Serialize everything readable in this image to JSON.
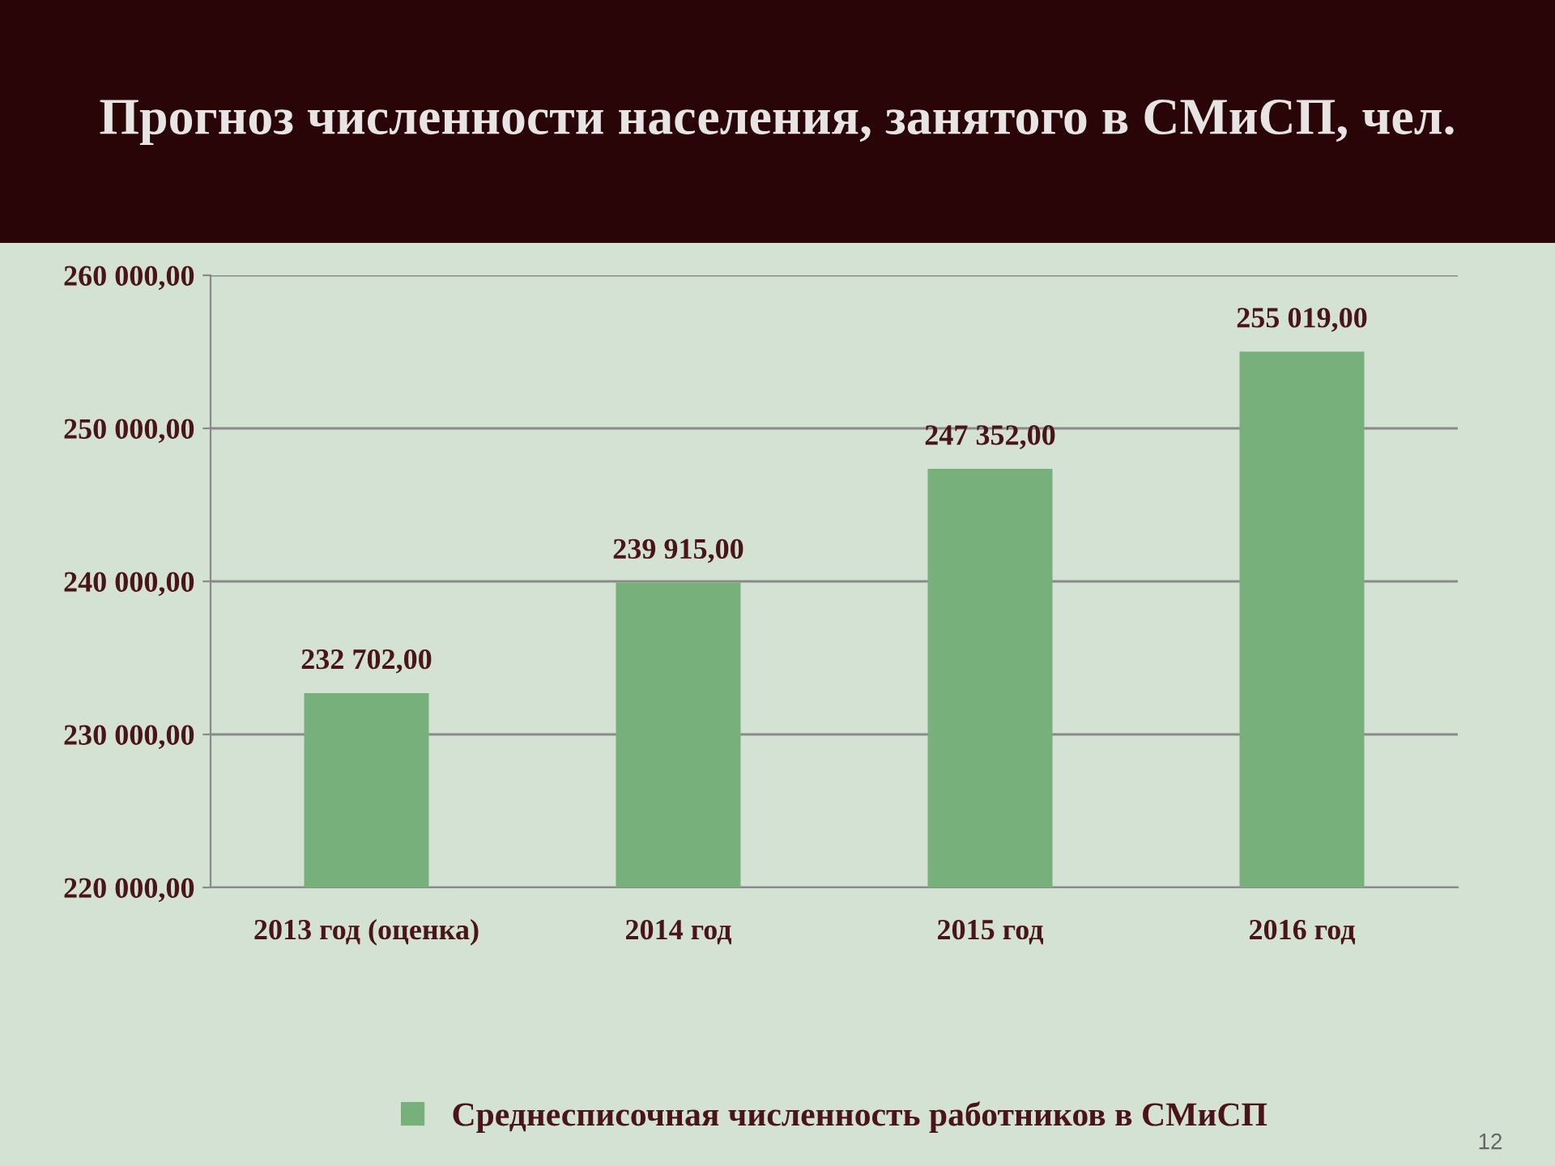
{
  "chart_data": {
    "type": "bar",
    "title": "Прогноз численности населения, занятого в СМиСП, чел.",
    "categories": [
      "2013 год (оценка)",
      "2014 год",
      "2015 год",
      "2016 год"
    ],
    "series": [
      {
        "name": "Среднесписочная численность работников в СМиСП",
        "color": "#78b07c",
        "values": [
          232702,
          239915,
          247352,
          255019
        ],
        "value_labels": [
          "232 702,00",
          "239 915,00",
          "247 352,00",
          "255 019,00"
        ]
      }
    ],
    "ylim": [
      220000,
      260000
    ],
    "yticks": [
      {
        "value": 220000,
        "label": "220 000,00"
      },
      {
        "value": 230000,
        "label": "230 000,00"
      },
      {
        "value": 240000,
        "label": "240 000,00"
      },
      {
        "value": 250000,
        "label": "250 000,00"
      },
      {
        "value": 260000,
        "label": "260 000,00"
      }
    ],
    "grid": "y",
    "legend": "bottom",
    "annotations": [
      "12"
    ]
  }
}
